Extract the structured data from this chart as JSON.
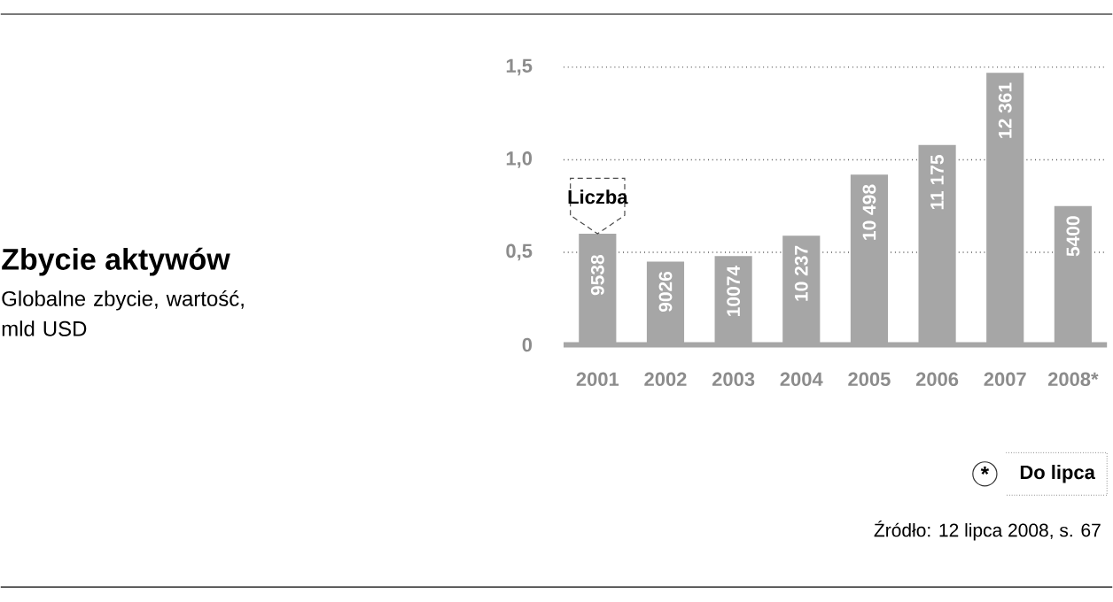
{
  "chart_data": {
    "type": "bar",
    "title": "Zbycie aktywów",
    "subtitle": "Globalne zbycie, wartość, mld USD",
    "categories": [
      "2001",
      "2002",
      "2003",
      "2004",
      "2005",
      "2006",
      "2007",
      "2008*"
    ],
    "values": [
      0.6,
      0.45,
      0.48,
      0.59,
      0.92,
      1.08,
      1.47,
      0.75
    ],
    "color": "#a6a6a6",
    "ylim": [
      0,
      1.5
    ],
    "yticks": [
      0,
      {
        "value": 0.5,
        "label": "0,5"
      },
      {
        "value": 1,
        "label": "1,0"
      },
      {
        "value": 1.5,
        "label": "1,5"
      }
    ],
    "grid": "y",
    "annotations": [
      "9538",
      "9026",
      "10074",
      "10 237",
      "10 498",
      "11 175",
      "12 361",
      "5400",
      {
        "text": "Liczba",
        "x": "2001",
        "y": 0.6
      },
      "*",
      "Do lipca",
      "Źródło: 12 lipca 2008, s. 67"
    ]
  }
}
